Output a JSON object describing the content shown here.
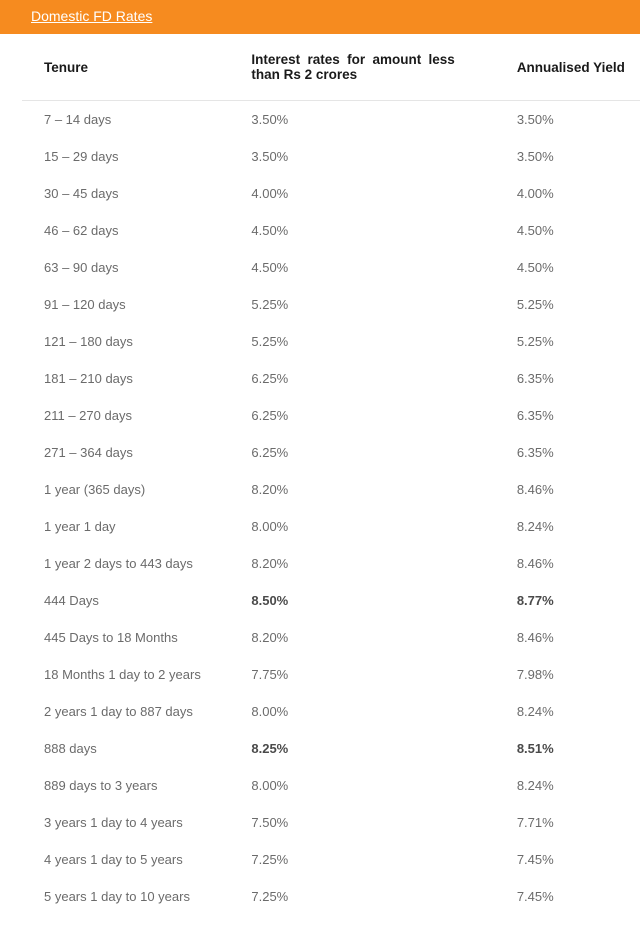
{
  "header": {
    "title": "Domestic FD Rates"
  },
  "table": {
    "columns": [
      "Tenure",
      "Interest rates for amount less than Rs 2 crores",
      "Annualised Yield"
    ],
    "rows": [
      {
        "tenure": "7 – 14 days",
        "rate": "3.50%",
        "yield": "3.50%",
        "bold": false
      },
      {
        "tenure": "15 – 29 days",
        "rate": "3.50%",
        "yield": "3.50%",
        "bold": false
      },
      {
        "tenure": "30 – 45 days",
        "rate": "4.00%",
        "yield": "4.00%",
        "bold": false
      },
      {
        "tenure": "46 – 62 days",
        "rate": "4.50%",
        "yield": "4.50%",
        "bold": false
      },
      {
        "tenure": "63 – 90 days",
        "rate": "4.50%",
        "yield": "4.50%",
        "bold": false
      },
      {
        "tenure": "91 – 120 days",
        "rate": "5.25%",
        "yield": "5.25%",
        "bold": false
      },
      {
        "tenure": "121 – 180 days",
        "rate": "5.25%",
        "yield": "5.25%",
        "bold": false
      },
      {
        "tenure": "181 – 210 days",
        "rate": "6.25%",
        "yield": "6.35%",
        "bold": false
      },
      {
        "tenure": "211 – 270 days",
        "rate": "6.25%",
        "yield": "6.35%",
        "bold": false
      },
      {
        "tenure": "271 – 364 days",
        "rate": "6.25%",
        "yield": "6.35%",
        "bold": false
      },
      {
        "tenure": "1 year (365 days)",
        "rate": "8.20%",
        "yield": "8.46%",
        "bold": false
      },
      {
        "tenure": "1 year 1 day",
        "rate": "8.00%",
        "yield": "8.24%",
        "bold": false
      },
      {
        "tenure": "1 year 2 days to 443 days",
        "rate": "8.20%",
        "yield": "8.46%",
        "bold": false
      },
      {
        "tenure": "444 Days",
        "rate": "8.50%",
        "yield": "8.77%",
        "bold": true
      },
      {
        "tenure": "445 Days to 18 Months",
        "rate": "8.20%",
        "yield": "8.46%",
        "bold": false
      },
      {
        "tenure": "18 Months 1 day to 2 years",
        "rate": "7.75%",
        "yield": "7.98%",
        "bold": false
      },
      {
        "tenure": "2 years 1 day to 887 days",
        "rate": "8.00%",
        "yield": "8.24%",
        "bold": false
      },
      {
        "tenure": "888 days",
        "rate": "8.25%",
        "yield": "8.51%",
        "bold": true
      },
      {
        "tenure": "889 days to 3 years",
        "rate": "8.00%",
        "yield": "8.24%",
        "bold": false
      },
      {
        "tenure": "3 years 1 day to 4 years",
        "rate": "7.50%",
        "yield": "7.71%",
        "bold": false
      },
      {
        "tenure": "4 years 1 day to 5 years",
        "rate": "7.25%",
        "yield": "7.45%",
        "bold": false
      },
      {
        "tenure": "5 years 1 day to 10 years",
        "rate": "7.25%",
        "yield": "7.45%",
        "bold": false
      }
    ]
  }
}
